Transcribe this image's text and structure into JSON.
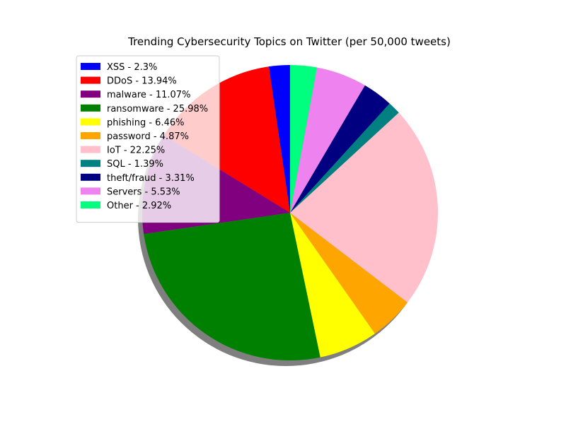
{
  "chart_data": {
    "type": "pie",
    "title": "Trending Cybersecurity Topics on Twitter (per 50,000 tweets)",
    "legend_position": "upper-left",
    "shadow": true,
    "start_angle_deg": 90,
    "direction": "counterclockwise",
    "slices": [
      {
        "label": "XSS",
        "value": 2.3,
        "legend": "XSS - 2.3%",
        "color": "#0000ff"
      },
      {
        "label": "DDoS",
        "value": 13.94,
        "legend": "DDoS - 13.94%",
        "color": "#ff0000"
      },
      {
        "label": "malware",
        "value": 11.07,
        "legend": "malware - 11.07%",
        "color": "#800080"
      },
      {
        "label": "ransomware",
        "value": 25.98,
        "legend": "ransomware - 25.98%",
        "color": "#008000"
      },
      {
        "label": "phishing",
        "value": 6.46,
        "legend": "phishing - 6.46%",
        "color": "#ffff00"
      },
      {
        "label": "password",
        "value": 4.87,
        "legend": "password - 4.87%",
        "color": "#ffa500"
      },
      {
        "label": "IoT",
        "value": 22.25,
        "legend": "IoT - 22.25%",
        "color": "#ffc0cb"
      },
      {
        "label": "SQL",
        "value": 1.39,
        "legend": "SQL - 1.39%",
        "color": "#008080"
      },
      {
        "label": "theft/fraud",
        "value": 3.31,
        "legend": "theft/fraud - 3.31%",
        "color": "#000080"
      },
      {
        "label": "Servers",
        "value": 5.53,
        "legend": "Servers - 5.53%",
        "color": "#ee82ee"
      },
      {
        "label": "Other",
        "value": 2.92,
        "legend": "Other - 2.92%",
        "color": "#00ff7f"
      }
    ]
  }
}
